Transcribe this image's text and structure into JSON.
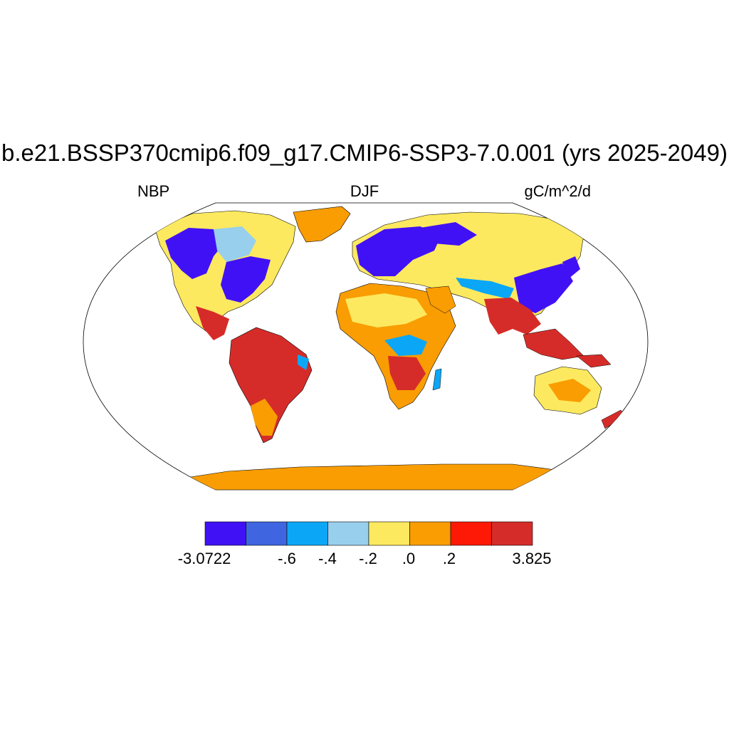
{
  "title": "b.e21.BSSP370cmip6.f09_g17.CMIP6-SSP3-7.0.001 (yrs 2025-2049)",
  "left_label": "NBP",
  "center_label": "DJF",
  "right_label": "gC/m^2/d",
  "colorbar": {
    "colors": [
      "#4111f5",
      "#3f66e0",
      "#0ba7f6",
      "#98cfec",
      "#fde95f",
      "#f99d03",
      "#fd1905",
      "#d62c29"
    ],
    "labels": [
      "-3.0722",
      "-.6",
      "-.4",
      "-.2",
      ".0",
      ".2",
      "3.825"
    ]
  },
  "colors": {
    "antarctica": "#f99d03",
    "ocean": "#ffffff",
    "outline": "#000000"
  }
}
